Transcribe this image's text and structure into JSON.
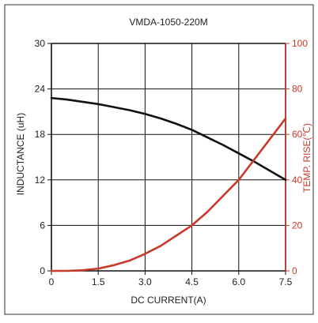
{
  "chart_data": {
    "type": "line",
    "title": "VMDA-1050-220M",
    "xlabel": "DC CURRENT(A)",
    "ylabel_left": "INDUCTANCE (uH)",
    "ylabel_right": "TEMP. RISE(℃)",
    "xlim": [
      0,
      7.5
    ],
    "ylim_left": [
      0,
      30
    ],
    "ylim_right": [
      0,
      100
    ],
    "x_ticks": [
      "0",
      "1.5",
      "3.0",
      "4.5",
      "6.0",
      "7.5"
    ],
    "x_tick_values": [
      0,
      1.5,
      3.0,
      4.5,
      6.0,
      7.5
    ],
    "y_left_ticks": [
      "0",
      "6",
      "12",
      "18",
      "24",
      "30"
    ],
    "y_left_tick_values": [
      0,
      6,
      12,
      18,
      24,
      30
    ],
    "y_right_ticks": [
      "0",
      "20",
      "40",
      "60",
      "80",
      "100"
    ],
    "y_right_tick_values": [
      0,
      20,
      40,
      60,
      80,
      100
    ],
    "grid": true,
    "series": [
      {
        "axis": "left",
        "color": "#111111",
        "x": [
          0,
          0.5,
          1.0,
          1.5,
          2.0,
          2.5,
          3.0,
          3.5,
          4.0,
          4.5,
          5.0,
          5.5,
          6.0,
          6.5,
          7.0,
          7.5
        ],
        "values": [
          22.8,
          22.6,
          22.3,
          22.0,
          21.6,
          21.2,
          20.7,
          20.1,
          19.4,
          18.6,
          17.6,
          16.6,
          15.5,
          14.4,
          13.2,
          12.0
        ]
      },
      {
        "axis": "right",
        "color": "#c83a2a",
        "x": [
          0,
          0.5,
          1.0,
          1.5,
          2.0,
          2.5,
          3.0,
          3.5,
          4.0,
          4.5,
          5.0,
          5.5,
          6.0,
          6.5,
          7.0,
          7.5
        ],
        "values": [
          0,
          0,
          0.3,
          1,
          2.5,
          4.5,
          7.5,
          11,
          15.5,
          20,
          26,
          33,
          40,
          49,
          58,
          67
        ]
      }
    ]
  }
}
